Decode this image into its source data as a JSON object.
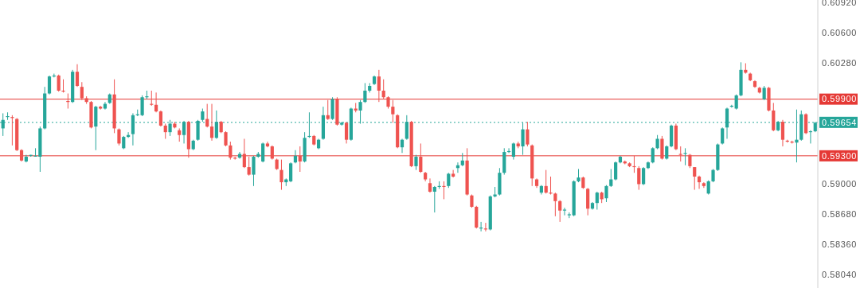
{
  "chart_data": {
    "type": "candlestick",
    "tick_labels": "y",
    "categories": [
      null,
      null,
      null,
      null,
      null,
      null,
      null,
      null,
      null,
      null,
      null,
      null,
      null,
      null,
      null,
      null,
      null,
      null,
      null,
      null,
      null,
      null,
      null,
      null,
      null,
      null,
      null,
      null,
      null,
      null,
      null,
      null,
      null,
      null,
      null,
      null,
      null,
      null,
      null,
      null,
      null,
      null,
      null,
      null,
      null,
      null,
      null,
      null,
      null,
      null,
      null,
      null,
      null,
      null,
      null,
      null,
      null,
      null,
      null,
      null,
      null,
      null,
      null,
      null,
      null,
      null,
      null,
      null,
      null,
      null,
      null,
      null,
      null,
      null,
      null,
      null,
      null,
      null,
      null,
      null,
      null,
      null,
      null,
      null,
      null,
      null,
      null,
      null,
      null,
      null,
      null,
      null,
      null,
      null,
      null,
      null,
      null,
      null,
      null,
      null,
      null,
      null,
      null,
      null,
      null,
      null,
      null,
      null,
      null,
      null,
      null,
      null,
      null,
      null,
      null,
      null,
      null,
      null,
      null,
      null,
      null,
      null,
      null,
      null,
      null,
      null,
      null,
      null,
      null,
      null,
      null,
      null,
      null,
      null,
      null,
      null,
      null,
      null,
      null,
      null,
      null,
      null,
      null,
      null,
      null,
      null,
      null,
      null,
      null,
      null,
      null,
      null,
      null,
      null,
      null,
      null,
      null,
      null,
      null,
      null,
      null,
      null,
      null,
      null,
      null,
      null,
      null,
      null,
      null,
      null,
      null,
      null,
      null,
      null,
      null,
      null
    ],
    "ohlc": [
      [
        0.5959,
        0.5975,
        0.5951,
        0.5968
      ],
      [
        0.5971,
        0.5976,
        0.5968,
        0.5972
      ],
      [
        0.5971,
        0.5973,
        0.5941,
        0.597
      ],
      [
        0.5969,
        0.597,
        0.5935,
        0.5936
      ],
      [
        0.5936,
        0.5937,
        0.5924,
        0.5925
      ],
      [
        0.5924,
        0.5931,
        0.5923,
        0.5929
      ],
      [
        0.593,
        0.5931,
        0.5929,
        0.5931
      ],
      [
        0.593,
        0.5938,
        0.5929,
        0.593
      ],
      [
        0.5929,
        0.5961,
        0.5913,
        0.5959
      ],
      [
        0.5959,
        0.6003,
        0.5958,
        0.5996
      ],
      [
        0.5996,
        0.6015,
        0.5995,
        0.6014
      ],
      [
        0.6014,
        0.6017,
        0.6013,
        0.6015
      ],
      [
        0.6015,
        0.6016,
        0.5998,
        0.5999
      ],
      [
        0.5999,
        0.6011,
        0.5997,
        0.5998
      ],
      [
        0.5988,
        0.5996,
        0.598,
        0.5987
      ],
      [
        0.5987,
        0.6021,
        0.5986,
        0.6019
      ],
      [
        0.6019,
        0.6027,
        0.6003,
        0.6004
      ],
      [
        0.6003,
        0.6008,
        0.5989,
        0.5991
      ],
      [
        0.5991,
        0.5993,
        0.5985,
        0.5987
      ],
      [
        0.5987,
        0.5988,
        0.5959,
        0.596
      ],
      [
        0.5961,
        0.5983,
        0.5936,
        0.5982
      ],
      [
        0.5982,
        0.5983,
        0.5979,
        0.598
      ],
      [
        0.598,
        0.5987,
        0.5979,
        0.5985
      ],
      [
        0.5986,
        0.5996,
        0.5985,
        0.5995
      ],
      [
        0.5995,
        0.6011,
        0.5954,
        0.5959
      ],
      [
        0.5958,
        0.5959,
        0.5941,
        0.5943
      ],
      [
        0.5938,
        0.5951,
        0.5937,
        0.595
      ],
      [
        0.595,
        0.5955,
        0.5949,
        0.5952
      ],
      [
        0.5953,
        0.5975,
        0.5941,
        0.5973
      ],
      [
        0.5973,
        0.5979,
        0.5972,
        0.5974
      ],
      [
        0.5973,
        0.5994,
        0.5972,
        0.5992
      ],
      [
        0.5992,
        0.5999,
        0.599,
        0.5993
      ],
      [
        0.5985,
        0.5999,
        0.5983,
        0.5984
      ],
      [
        0.5984,
        0.5997,
        0.5976,
        0.5977
      ],
      [
        0.5977,
        0.5978,
        0.5961,
        0.5962
      ],
      [
        0.5962,
        0.5964,
        0.5948,
        0.5955
      ],
      [
        0.5955,
        0.5968,
        0.5951,
        0.5964
      ],
      [
        0.5964,
        0.5966,
        0.5959,
        0.596
      ],
      [
        0.5957,
        0.5959,
        0.5945,
        0.5952
      ],
      [
        0.5952,
        0.5967,
        0.5943,
        0.5966
      ],
      [
        0.5966,
        0.5967,
        0.5928,
        0.5937
      ],
      [
        0.5937,
        0.5947,
        0.5936,
        0.5946
      ],
      [
        0.5947,
        0.5968,
        0.5946,
        0.5967
      ],
      [
        0.5968,
        0.598,
        0.5966,
        0.5977
      ],
      [
        0.5969,
        0.5985,
        0.596,
        0.5961
      ],
      [
        0.5961,
        0.5985,
        0.5946,
        0.5949
      ],
      [
        0.5949,
        0.5978,
        0.5948,
        0.5966
      ],
      [
        0.5966,
        0.5967,
        0.5954,
        0.5955
      ],
      [
        0.5955,
        0.5956,
        0.594,
        0.5941
      ],
      [
        0.5941,
        0.5945,
        0.5926,
        0.5928
      ],
      [
        0.5928,
        0.5929,
        0.5926,
        0.5927
      ],
      [
        0.5928,
        0.5934,
        0.5927,
        0.5932
      ],
      [
        0.5932,
        0.5948,
        0.5917,
        0.5918
      ],
      [
        0.5918,
        0.5929,
        0.5909,
        0.591
      ],
      [
        0.591,
        0.593,
        0.5898,
        0.5929
      ],
      [
        0.5929,
        0.5934,
        0.5928,
        0.5932
      ],
      [
        0.5924,
        0.5944,
        0.5923,
        0.5943
      ],
      [
        0.5943,
        0.5945,
        0.5939,
        0.594
      ],
      [
        0.594,
        0.5941,
        0.5926,
        0.5927
      ],
      [
        0.5926,
        0.5927,
        0.5915,
        0.5916
      ],
      [
        0.5915,
        0.5926,
        0.5894,
        0.5902
      ],
      [
        0.5902,
        0.5906,
        0.5898,
        0.5905
      ],
      [
        0.5903,
        0.5923,
        0.5902,
        0.5922
      ],
      [
        0.5923,
        0.5936,
        0.5922,
        0.593
      ],
      [
        0.593,
        0.594,
        0.5913,
        0.5924
      ],
      [
        0.5924,
        0.5955,
        0.5923,
        0.5949
      ],
      [
        0.595,
        0.5976,
        0.5949,
        0.5951
      ],
      [
        0.5951,
        0.5952,
        0.5941,
        0.5942
      ],
      [
        0.5938,
        0.5948,
        0.5937,
        0.5947
      ],
      [
        0.5948,
        0.5982,
        0.5947,
        0.5973
      ],
      [
        0.5973,
        0.5989,
        0.5968,
        0.5969
      ],
      [
        0.5969,
        0.5992,
        0.5968,
        0.599
      ],
      [
        0.599,
        0.5992,
        0.5962,
        0.5963
      ],
      [
        0.5963,
        0.5966,
        0.5962,
        0.5965
      ],
      [
        0.5965,
        0.5966,
        0.5943,
        0.5947
      ],
      [
        0.5947,
        0.5981,
        0.5946,
        0.598
      ],
      [
        0.598,
        0.5986,
        0.5976,
        0.5978
      ],
      [
        0.5978,
        0.5989,
        0.5964,
        0.5987
      ],
      [
        0.5987,
        0.6007,
        0.5986,
        0.5999
      ],
      [
        0.5999,
        0.6007,
        0.5997,
        0.6004
      ],
      [
        0.6006,
        0.6015,
        0.6005,
        0.6014
      ],
      [
        0.6014,
        0.6021,
        0.5987,
        0.5999
      ],
      [
        0.5999,
        0.6011,
        0.599,
        0.5992
      ],
      [
        0.5992,
        0.5993,
        0.598,
        0.5982
      ],
      [
        0.5982,
        0.5989,
        0.5965,
        0.5974
      ],
      [
        0.5973,
        0.5974,
        0.5938,
        0.5939
      ],
      [
        0.5939,
        0.5948,
        0.5933,
        0.5947
      ],
      [
        0.5948,
        0.5973,
        0.5947,
        0.5966
      ],
      [
        0.5966,
        0.5967,
        0.5918,
        0.5919
      ],
      [
        0.5919,
        0.5931,
        0.5915,
        0.5929
      ],
      [
        0.5929,
        0.5943,
        0.5912,
        0.5913
      ],
      [
        0.5912,
        0.5913,
        0.5903,
        0.5905
      ],
      [
        0.5901,
        0.5906,
        0.5891,
        0.5892
      ],
      [
        0.5892,
        0.5898,
        0.587,
        0.5897
      ],
      [
        0.5897,
        0.5903,
        0.5895,
        0.5898
      ],
      [
        0.5898,
        0.5903,
        0.5884,
        0.5897
      ],
      [
        0.5898,
        0.5912,
        0.5896,
        0.5911
      ],
      [
        0.5911,
        0.5915,
        0.5907,
        0.5908
      ],
      [
        0.5917,
        0.5923,
        0.5912,
        0.592
      ],
      [
        0.592,
        0.5933,
        0.5919,
        0.5925
      ],
      [
        0.5925,
        0.5938,
        0.5888,
        0.5889
      ],
      [
        0.5888,
        0.5889,
        0.5875,
        0.5876
      ],
      [
        0.5876,
        0.5877,
        0.5853,
        0.5854
      ],
      [
        0.5853,
        0.586,
        0.585,
        0.5854
      ],
      [
        0.5853,
        0.5859,
        0.585,
        0.5852
      ],
      [
        0.5852,
        0.5888,
        0.5851,
        0.5887
      ],
      [
        0.5887,
        0.5897,
        0.5886,
        0.5889
      ],
      [
        0.5889,
        0.5917,
        0.5888,
        0.5912
      ],
      [
        0.5912,
        0.5938,
        0.591,
        0.5934
      ],
      [
        0.5934,
        0.5938,
        0.5933,
        0.5935
      ],
      [
        0.5929,
        0.5944,
        0.5926,
        0.5943
      ],
      [
        0.5943,
        0.5945,
        0.5938,
        0.594
      ],
      [
        0.594,
        0.5965,
        0.5931,
        0.5958
      ],
      [
        0.5958,
        0.5966,
        0.594,
        0.5942
      ],
      [
        0.5941,
        0.5942,
        0.5898,
        0.5906
      ],
      [
        0.5905,
        0.5906,
        0.5896,
        0.5898
      ],
      [
        0.5891,
        0.5899,
        0.5889,
        0.5898
      ],
      [
        0.5898,
        0.5915,
        0.589,
        0.5891
      ],
      [
        0.5891,
        0.5908,
        0.5889,
        0.589
      ],
      [
        0.589,
        0.5891,
        0.5866,
        0.5882
      ],
      [
        0.5882,
        0.5883,
        0.586,
        0.5872
      ],
      [
        0.5872,
        0.5875,
        0.5867,
        0.5873
      ],
      [
        0.5867,
        0.587,
        0.5864,
        0.5868
      ],
      [
        0.5867,
        0.5904,
        0.5866,
        0.5903
      ],
      [
        0.5903,
        0.5916,
        0.5902,
        0.5907
      ],
      [
        0.5907,
        0.5908,
        0.5895,
        0.5896
      ],
      [
        0.5895,
        0.5896,
        0.5867,
        0.5874
      ],
      [
        0.5874,
        0.5881,
        0.5873,
        0.588
      ],
      [
        0.588,
        0.5892,
        0.5873,
        0.5891
      ],
      [
        0.5891,
        0.5892,
        0.588,
        0.5884
      ],
      [
        0.5885,
        0.5899,
        0.5881,
        0.5898
      ],
      [
        0.5898,
        0.5916,
        0.5897,
        0.5905
      ],
      [
        0.5905,
        0.5924,
        0.5904,
        0.5923
      ],
      [
        0.5923,
        0.593,
        0.5922,
        0.5929
      ],
      [
        0.5924,
        0.5925,
        0.5921,
        0.5922
      ],
      [
        0.5922,
        0.5923,
        0.5918,
        0.5919
      ],
      [
        0.5919,
        0.593,
        0.5912,
        0.5918
      ],
      [
        0.5917,
        0.5919,
        0.5894,
        0.59
      ],
      [
        0.59,
        0.5918,
        0.5899,
        0.5917
      ],
      [
        0.5917,
        0.5924,
        0.5916,
        0.5923
      ],
      [
        0.5923,
        0.5939,
        0.5922,
        0.5938
      ],
      [
        0.5938,
        0.5952,
        0.5937,
        0.5948
      ],
      [
        0.5948,
        0.5951,
        0.5926,
        0.5927
      ],
      [
        0.5927,
        0.5941,
        0.5926,
        0.594
      ],
      [
        0.594,
        0.5963,
        0.5939,
        0.5962
      ],
      [
        0.5962,
        0.5964,
        0.5936,
        0.5937
      ],
      [
        0.5932,
        0.594,
        0.5924,
        0.5931
      ],
      [
        0.5932,
        0.5938,
        0.592,
        0.5933
      ],
      [
        0.5931,
        0.5932,
        0.5917,
        0.5919
      ],
      [
        0.5918,
        0.5918,
        0.5894,
        0.5908
      ],
      [
        0.5908,
        0.5909,
        0.5895,
        0.5902
      ],
      [
        0.5901,
        0.5902,
        0.5896,
        0.5898
      ],
      [
        0.589,
        0.5904,
        0.5889,
        0.5903
      ],
      [
        0.5903,
        0.5916,
        0.5902,
        0.5915
      ],
      [
        0.5915,
        0.5943,
        0.5914,
        0.5942
      ],
      [
        0.5943,
        0.596,
        0.5942,
        0.5959
      ],
      [
        0.596,
        0.5981,
        0.5948,
        0.598
      ],
      [
        0.5982,
        0.5984,
        0.5981,
        0.5983
      ],
      [
        0.598,
        0.5995,
        0.5979,
        0.5994
      ],
      [
        0.5994,
        0.6029,
        0.5993,
        0.6021
      ],
      [
        0.6021,
        0.6028,
        0.6017,
        0.6018
      ],
      [
        0.6017,
        0.6018,
        0.6009,
        0.601
      ],
      [
        0.6009,
        0.601,
        0.6002,
        0.6003
      ],
      [
        0.6002,
        0.6003,
        0.5996,
        0.5997
      ],
      [
        0.599,
        0.6004,
        0.5989,
        0.6002
      ],
      [
        0.6002,
        0.6003,
        0.5977,
        0.5978
      ],
      [
        0.5978,
        0.5986,
        0.5956,
        0.5957
      ],
      [
        0.5957,
        0.5967,
        0.5956,
        0.5966
      ],
      [
        0.5966,
        0.5968,
        0.594,
        0.5947
      ],
      [
        0.5946,
        0.5947,
        0.5944,
        0.5945
      ],
      [
        0.5945,
        0.5946,
        0.5943,
        0.5944
      ],
      [
        0.5944,
        0.5979,
        0.5923,
        0.5947
      ],
      [
        0.5947,
        0.5978,
        0.5946,
        0.5974
      ],
      [
        0.5974,
        0.5975,
        0.5953,
        0.5954
      ],
      [
        0.5955,
        0.5957,
        0.5943,
        0.5956
      ],
      [
        0.5956,
        0.5966,
        0.5955,
        0.5965
      ]
    ],
    "colors": [
      "#26a69a",
      "#26a69a",
      "#ef5350",
      "#ef5350",
      "#ef5350",
      "#26a69a",
      "#26a69a",
      "#26a69a",
      "#26a69a",
      "#26a69a",
      "#26a69a",
      "#26a69a",
      "#ef5350",
      "#ef5350",
      "#ef5350",
      "#26a69a",
      "#ef5350",
      "#ef5350",
      "#ef5350",
      "#ef5350",
      "#26a69a",
      "#ef5350",
      "#26a69a",
      "#26a69a",
      "#ef5350",
      "#ef5350",
      "#26a69a",
      "#26a69a",
      "#26a69a",
      "#26a69a",
      "#26a69a",
      "#26a69a",
      "#ef5350",
      "#ef5350",
      "#ef5350",
      "#ef5350",
      "#26a69a",
      "#ef5350",
      "#ef5350",
      "#26a69a",
      "#ef5350",
      "#26a69a",
      "#26a69a",
      "#26a69a",
      "#ef5350",
      "#ef5350",
      "#26a69a",
      "#ef5350",
      "#ef5350",
      "#ef5350",
      "#ef5350",
      "#26a69a",
      "#ef5350",
      "#ef5350",
      "#26a69a",
      "#26a69a",
      "#26a69a",
      "#ef5350",
      "#ef5350",
      "#ef5350",
      "#ef5350",
      "#26a69a",
      "#26a69a",
      "#26a69a",
      "#ef5350",
      "#26a69a",
      "#26a69a",
      "#ef5350",
      "#26a69a",
      "#26a69a",
      "#ef5350",
      "#26a69a",
      "#ef5350",
      "#26a69a",
      "#ef5350",
      "#26a69a",
      "#ef5350",
      "#26a69a",
      "#26a69a",
      "#26a69a",
      "#26a69a",
      "#ef5350",
      "#ef5350",
      "#ef5350",
      "#ef5350",
      "#ef5350",
      "#26a69a",
      "#26a69a",
      "#ef5350",
      "#26a69a",
      "#ef5350",
      "#ef5350",
      "#ef5350",
      "#26a69a",
      "#26a69a",
      "#ef5350",
      "#26a69a",
      "#ef5350",
      "#26a69a",
      "#26a69a",
      "#ef5350",
      "#ef5350",
      "#ef5350",
      "#26a69a",
      "#ef5350",
      "#26a69a",
      "#26a69a",
      "#26a69a",
      "#26a69a",
      "#26a69a",
      "#26a69a",
      "#ef5350",
      "#26a69a",
      "#ef5350",
      "#ef5350",
      "#ef5350",
      "#26a69a",
      "#ef5350",
      "#ef5350",
      "#ef5350",
      "#ef5350",
      "#26a69a",
      "#26a69a",
      "#26a69a",
      "#26a69a",
      "#ef5350",
      "#ef5350",
      "#26a69a",
      "#26a69a",
      "#ef5350",
      "#26a69a",
      "#26a69a",
      "#26a69a",
      "#26a69a",
      "#ef5350",
      "#ef5350",
      "#ef5350",
      "#ef5350",
      "#26a69a",
      "#26a69a",
      "#26a69a",
      "#26a69a",
      "#ef5350",
      "#26a69a",
      "#26a69a",
      "#ef5350",
      "#ef5350",
      "#26a69a",
      "#ef5350",
      "#ef5350",
      "#ef5350",
      "#ef5350",
      "#26a69a",
      "#26a69a",
      "#26a69a",
      "#26a69a",
      "#26a69a",
      "#26a69a",
      "#26a69a",
      "#26a69a",
      "#ef5350",
      "#ef5350",
      "#ef5350",
      "#ef5350",
      "#26a69a",
      "#ef5350",
      "#ef5350",
      "#26a69a",
      "#ef5350",
      "#ef5350",
      "#ef5350",
      "#26a69a",
      "#26a69a",
      "#ef5350",
      "#26a69a",
      "#26a69a"
    ],
    "ylim": [
      0.579,
      0.6095
    ],
    "yticks": [
      {
        "value": 0.5804,
        "label": "0.58040"
      },
      {
        "value": 0.5836,
        "label": "0.58360"
      },
      {
        "value": 0.5868,
        "label": "0.58680"
      },
      {
        "value": 0.59,
        "label": "0.59000"
      },
      {
        "value": 0.6028,
        "label": "0.60280"
      },
      {
        "value": 0.606,
        "label": "0.60600"
      },
      {
        "value": 0.6092,
        "label": "0.60920"
      }
    ],
    "ref_lines": [
      {
        "axis": "y",
        "value": 0.599,
        "label": "0.59900",
        "color": "#e53935",
        "line_style": "solid"
      },
      {
        "axis": "y",
        "value": 0.593,
        "label": "0.59300",
        "color": "#e53935",
        "line_style": "solid"
      },
      {
        "axis": "y",
        "value": 0.59654,
        "label": "0.59654",
        "color": "#26a69a",
        "line_style": "dotted"
      }
    ]
  }
}
